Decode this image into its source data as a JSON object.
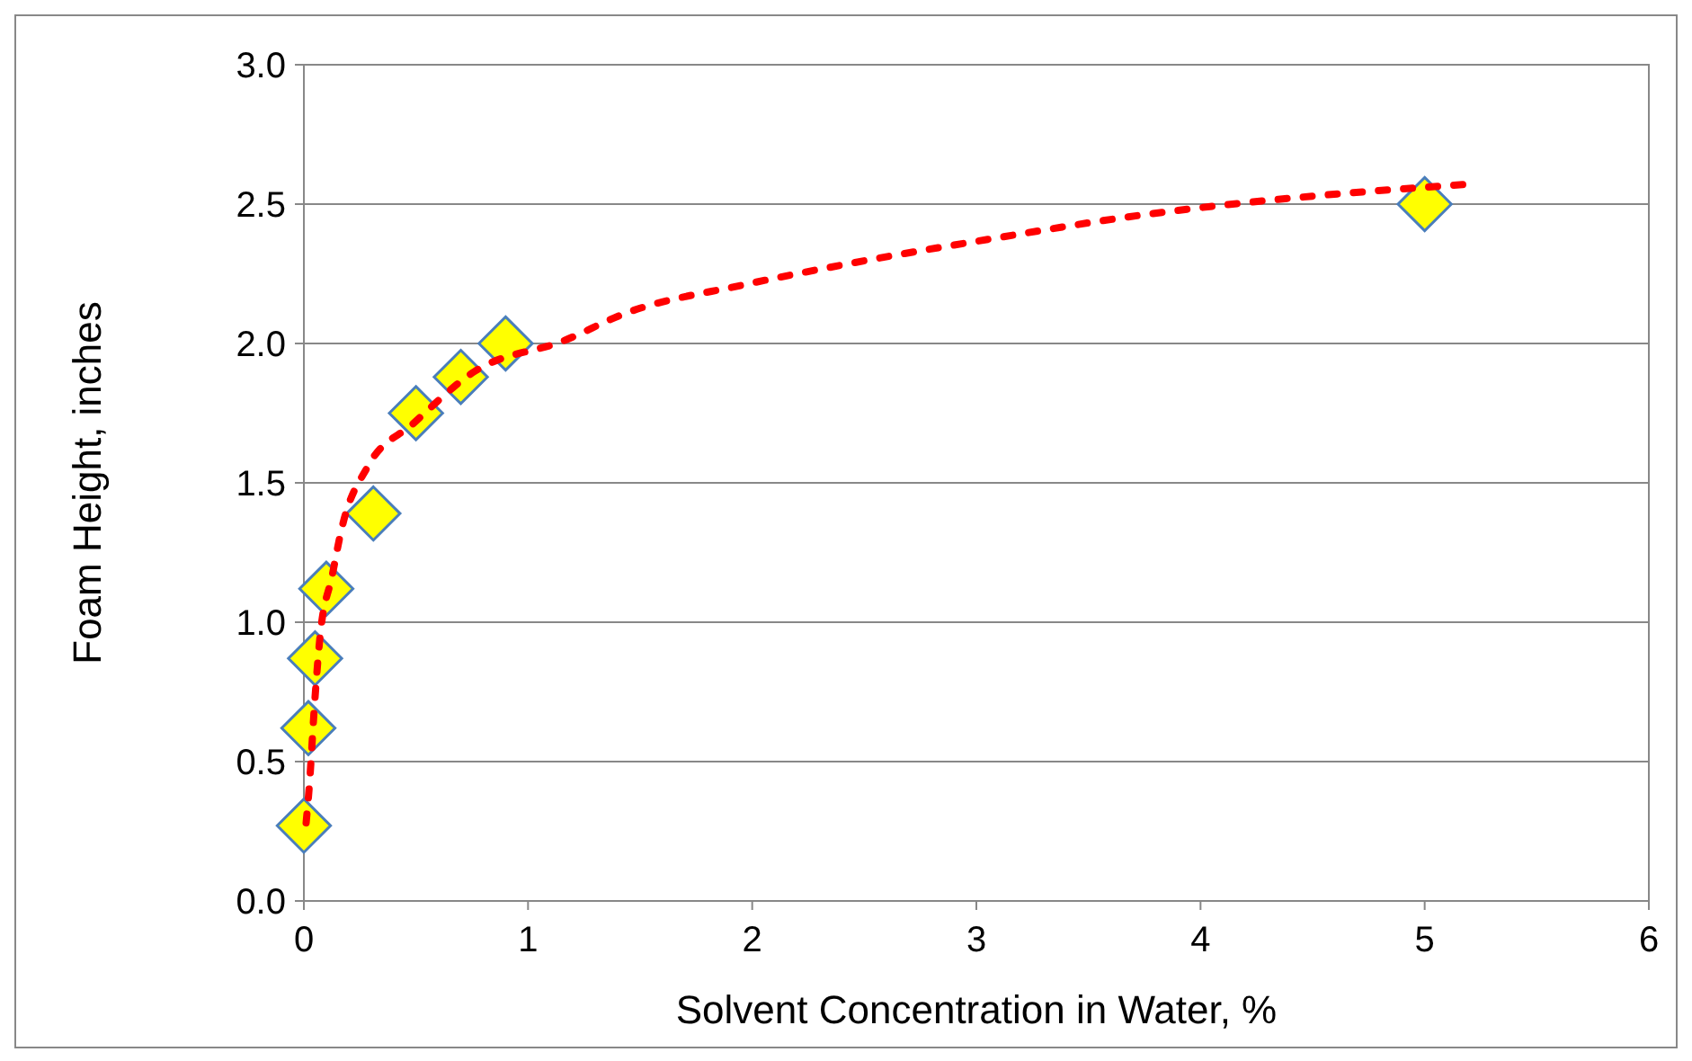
{
  "chart_data": {
    "type": "scatter",
    "xlabel": "Solvent Concentration in Water, %",
    "ylabel": "Foam Height, inches",
    "xlim": [
      0,
      6
    ],
    "ylim": [
      0,
      3
    ],
    "xticks": [
      0,
      1,
      2,
      3,
      4,
      5,
      6
    ],
    "yticks": [
      {
        "value": 0,
        "label": "0.0"
      },
      {
        "value": 0.5,
        "label": "0.5"
      },
      {
        "value": 1,
        "label": "1.0"
      },
      {
        "value": 1.5,
        "label": "1.5"
      },
      {
        "value": 2,
        "label": "2.0"
      },
      {
        "value": 2.5,
        "label": "2.5"
      },
      {
        "value": 3,
        "label": "3.0"
      }
    ],
    "grid": "y",
    "series": [
      {
        "color": "#ffff00",
        "marker": "diamond",
        "x": [
          0,
          0.02,
          0.05,
          0.1,
          0.31,
          0.5,
          0.7,
          0.9,
          5
        ],
        "values": [
          0.27,
          0.62,
          0.87,
          1.12,
          1.39,
          1.75,
          1.88,
          2.0,
          2.5
        ]
      },
      {
        "type": "line",
        "color": "#ff0000",
        "marker": "none",
        "line_style": "dotted",
        "x": [
          0.01,
          0.024,
          0.048,
          0.071,
          0.127,
          0.167,
          0.286,
          0.484,
          0.762,
          1.16,
          1.44,
          1.96,
          2.39,
          3.1,
          3.73,
          4.52,
          5.17
        ],
        "values": [
          0.28,
          0.41,
          0.71,
          0.94,
          1.17,
          1.33,
          1.56,
          1.71,
          1.9,
          2.01,
          2.11,
          2.21,
          2.28,
          2.38,
          2.46,
          2.53,
          2.57
        ]
      }
    ]
  }
}
